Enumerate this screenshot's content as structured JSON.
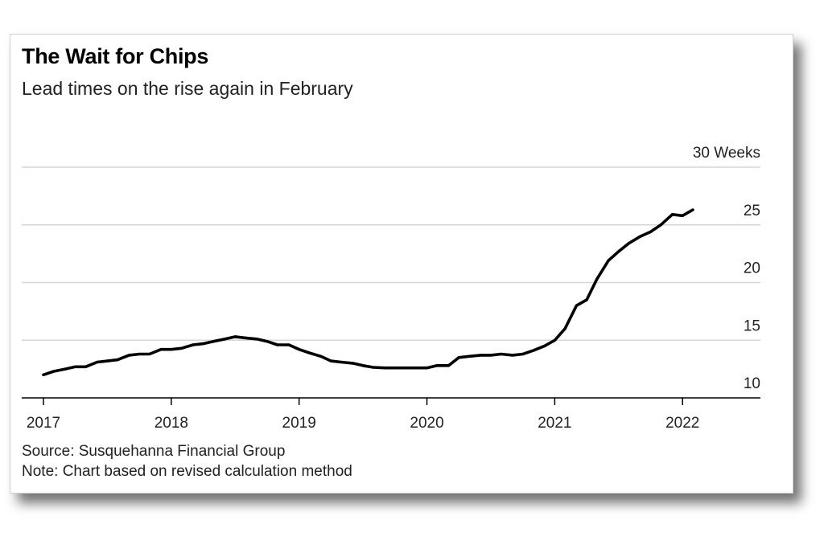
{
  "title": "The Wait for Chips",
  "subtitle": "Lead times on the rise again in February",
  "source": "Source: Susquehanna Financial Group",
  "note": "Note: Chart based on revised calculation method",
  "chart_data": {
    "type": "line",
    "title": "The Wait for Chips",
    "subtitle": "Lead times on the rise again in February",
    "ylabel": "",
    "y_unit_label": "30 Weeks",
    "ylim": [
      10,
      30
    ],
    "y_ticks": [
      10,
      15,
      20,
      25,
      30
    ],
    "y_tick_labels": [
      "10",
      "15",
      "20",
      "25",
      "30 Weeks"
    ],
    "x_ticks": [
      "2017",
      "2018",
      "2019",
      "2020",
      "2021",
      "2022"
    ],
    "xlim": [
      2017.0,
      2022.2
    ],
    "grid": true,
    "legend": "none",
    "line_color": "#000000",
    "series": [
      {
        "x": [
          2017.0,
          2017.08,
          2017.17,
          2017.25,
          2017.33,
          2017.42,
          2017.5,
          2017.58,
          2017.67,
          2017.75,
          2017.83,
          2017.92,
          2018.0,
          2018.08,
          2018.17,
          2018.25,
          2018.33,
          2018.42,
          2018.5,
          2018.58,
          2018.67,
          2018.75,
          2018.83,
          2018.92,
          2019.0,
          2019.08,
          2019.17,
          2019.25,
          2019.33,
          2019.42,
          2019.5,
          2019.58,
          2019.67,
          2019.75,
          2019.83,
          2019.92,
          2020.0,
          2020.08,
          2020.17,
          2020.25,
          2020.33,
          2020.42,
          2020.5,
          2020.58,
          2020.67,
          2020.75,
          2020.83,
          2020.92,
          2021.0,
          2021.08,
          2021.17,
          2021.25,
          2021.33,
          2021.42,
          2021.5,
          2021.58,
          2021.67,
          2021.75,
          2021.83,
          2021.92,
          2022.0,
          2022.08
        ],
        "values": [
          12.0,
          12.3,
          12.5,
          12.7,
          12.7,
          13.1,
          13.2,
          13.3,
          13.7,
          13.8,
          13.8,
          14.2,
          14.2,
          14.3,
          14.6,
          14.7,
          14.9,
          15.1,
          15.3,
          15.2,
          15.1,
          14.9,
          14.6,
          14.6,
          14.2,
          13.9,
          13.6,
          13.2,
          13.1,
          13.0,
          12.8,
          12.65,
          12.6,
          12.6,
          12.6,
          12.6,
          12.6,
          12.8,
          12.8,
          13.5,
          13.6,
          13.7,
          13.7,
          13.8,
          13.7,
          13.8,
          14.1,
          14.5,
          15.0,
          16.0,
          18.0,
          18.5,
          20.3,
          21.9,
          22.7,
          23.4,
          24.0,
          24.4,
          25.0,
          25.9,
          25.8,
          26.3
        ]
      }
    ]
  }
}
